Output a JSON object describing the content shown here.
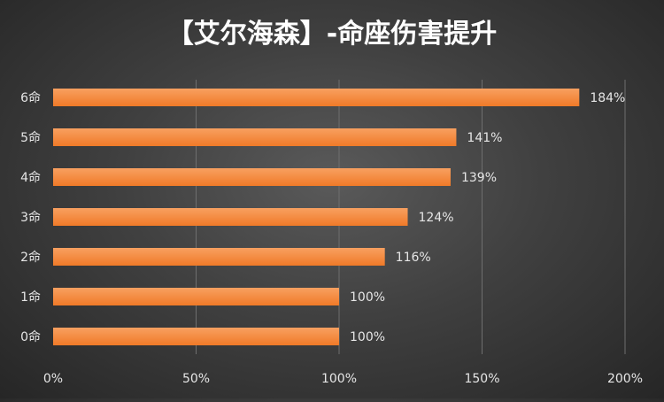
{
  "chart_data": {
    "type": "bar",
    "orientation": "horizontal",
    "title": "【艾尔海森】-命座伤害提升",
    "xlabel": "",
    "ylabel": "",
    "categories": [
      "6命",
      "5命",
      "4命",
      "3命",
      "2命",
      "1命",
      "0命"
    ],
    "values": [
      184,
      141,
      139,
      124,
      116,
      100,
      100
    ],
    "value_labels": [
      "184%",
      "141%",
      "139%",
      "124%",
      "116%",
      "100%",
      "100%"
    ],
    "xlim": [
      0,
      200
    ],
    "x_ticks": [
      0,
      50,
      100,
      150,
      200
    ],
    "x_tick_labels": [
      "0%",
      "50%",
      "100%",
      "150%",
      "200%"
    ],
    "grid": true,
    "legend": "none",
    "colors": {
      "bar_fill": "#F07A28",
      "bar_highlight": "#F8A060",
      "text": "#E6E6E6",
      "title": "#FFFFFF",
      "grid": "#6E6E6E"
    }
  }
}
